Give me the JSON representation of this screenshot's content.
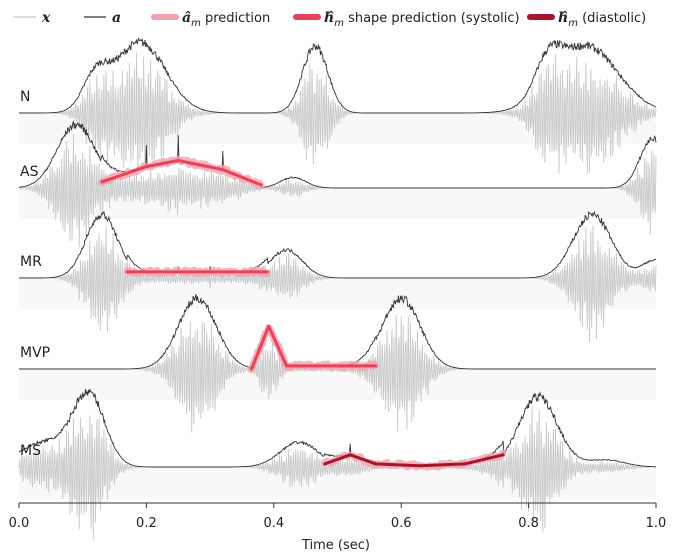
{
  "legend": [
    {
      "symbol": "𝒙",
      "text": "",
      "color": "#c8c8c8",
      "kind": "thin"
    },
    {
      "symbol": "𝒂",
      "text": "",
      "color": "#333333",
      "kind": "thin"
    },
    {
      "symbol": "𝒂̂",
      "sub": "m",
      "text": " prediction",
      "color": "#f2a1ad",
      "kind": "thick"
    },
    {
      "symbol": "𝒉̂",
      "sub": "m",
      "text": " shape prediction (systolic)",
      "color": "#e8425a",
      "kind": "thick"
    },
    {
      "symbol": "𝒉̂",
      "sub": "m",
      "text": " (diastolic)",
      "color": "#a3162e",
      "kind": "thick"
    }
  ],
  "chart_data": {
    "type": "line",
    "xlabel": "Time (sec)",
    "xlim": [
      0.0,
      1.0
    ],
    "xticks": [
      0.0,
      0.2,
      0.4,
      0.6,
      0.8,
      1.0
    ],
    "xtick_labels": [
      "0.0",
      "0.2",
      "0.4",
      "0.6",
      "0.8",
      "1.0"
    ],
    "grid": false,
    "legend_position": "top",
    "colors": {
      "signal_x": "#c8c8c8",
      "envelope_a": "#333333",
      "prediction_a": "#f2a1ad",
      "systolic": "#e8425a",
      "diastolic": "#a3162e"
    },
    "rows": [
      {
        "label": "N",
        "bursts": [
          [
            0.19,
            1.0,
            0.04
          ],
          [
            0.12,
            0.45,
            0.02
          ],
          [
            0.465,
            0.95,
            0.02
          ],
          [
            0.89,
            0.95,
            0.05
          ],
          [
            0.83,
            0.45,
            0.02
          ]
        ],
        "murmur": null
      },
      {
        "label": "AS",
        "bursts": [
          [
            0.09,
            0.9,
            0.03
          ],
          [
            0.43,
            0.15,
            0.02
          ],
          [
            0.995,
            0.7,
            0.02
          ]
        ],
        "murmur": {
          "kind": "systolic",
          "points": [
            [
              0.13,
              0.1
            ],
            [
              0.2,
              0.35
            ],
            [
              0.25,
              0.45
            ],
            [
              0.32,
              0.3
            ],
            [
              0.38,
              0.05
            ]
          ]
        }
      },
      {
        "label": "MR",
        "bursts": [
          [
            0.13,
            0.9,
            0.025
          ],
          [
            0.42,
            0.4,
            0.025
          ],
          [
            0.9,
            0.9,
            0.03
          ],
          [
            0.998,
            0.25,
            0.02
          ]
        ],
        "murmur": {
          "kind": "systolic",
          "points": [
            [
              0.17,
              0.1
            ],
            [
              0.25,
              0.1
            ],
            [
              0.3,
              0.1
            ],
            [
              0.39,
              0.1
            ]
          ]
        }
      },
      {
        "label": "MVP",
        "bursts": [
          [
            0.28,
            1.0,
            0.03
          ],
          [
            0.6,
            1.0,
            0.03
          ]
        ],
        "murmur": {
          "kind": "systolic",
          "points": [
            [
              0.365,
              0.0
            ],
            [
              0.392,
              0.7
            ],
            [
              0.42,
              0.05
            ],
            [
              0.56,
              0.05
            ]
          ]
        }
      },
      {
        "label": "MS",
        "bursts": [
          [
            0.11,
            1.0,
            0.025
          ],
          [
            0.04,
            0.35,
            0.04
          ],
          [
            0.44,
            0.35,
            0.03
          ],
          [
            0.815,
            1.0,
            0.03
          ],
          [
            0.92,
            0.1,
            0.03
          ]
        ],
        "murmur": {
          "kind": "diastolic",
          "points": [
            [
              0.48,
              0.05
            ],
            [
              0.52,
              0.2
            ],
            [
              0.56,
              0.05
            ],
            [
              0.63,
              0.02
            ],
            [
              0.7,
              0.05
            ],
            [
              0.76,
              0.2
            ]
          ]
        }
      }
    ]
  }
}
